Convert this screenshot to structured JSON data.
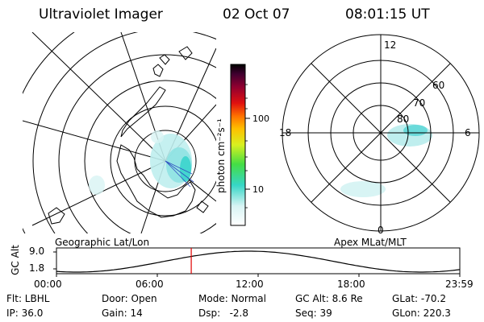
{
  "header": {
    "title": "Ultraviolet Imager",
    "date": "02 Oct 07",
    "time": "08:01:15 UT"
  },
  "colorbar": {
    "label": "photon cm⁻²s⁻¹",
    "ticks": [
      "100",
      "10"
    ]
  },
  "maps": {
    "left_caption": "Geographic Lat/Lon",
    "right_caption": "Apex MLat/MLT",
    "mlt_labels": [
      "12",
      "18",
      "6",
      "0"
    ],
    "mlat_labels": [
      "60",
      "70",
      "80"
    ]
  },
  "altitude_plot": {
    "ylabel": "GC Alt",
    "yticks": [
      "9.0",
      "1.8"
    ],
    "xticks": [
      "00:00",
      "06:00",
      "12:00",
      "18:00",
      "23:59"
    ],
    "marker_hour": 8.02
  },
  "info": {
    "filter": "Flt: LBHL",
    "ip": "IP: 36.0",
    "door": "Door: Open",
    "gain": "Gain: 14",
    "mode": "Mode: Normal",
    "dsp": "Dsp:   -2.8",
    "gc_alt": "GC Alt: 8.6 Re",
    "seq": "Seq: 39",
    "glat": "GLat: -70.2",
    "glon": "GLon: 220.3"
  },
  "colors": {
    "marker": "#e00000"
  }
}
